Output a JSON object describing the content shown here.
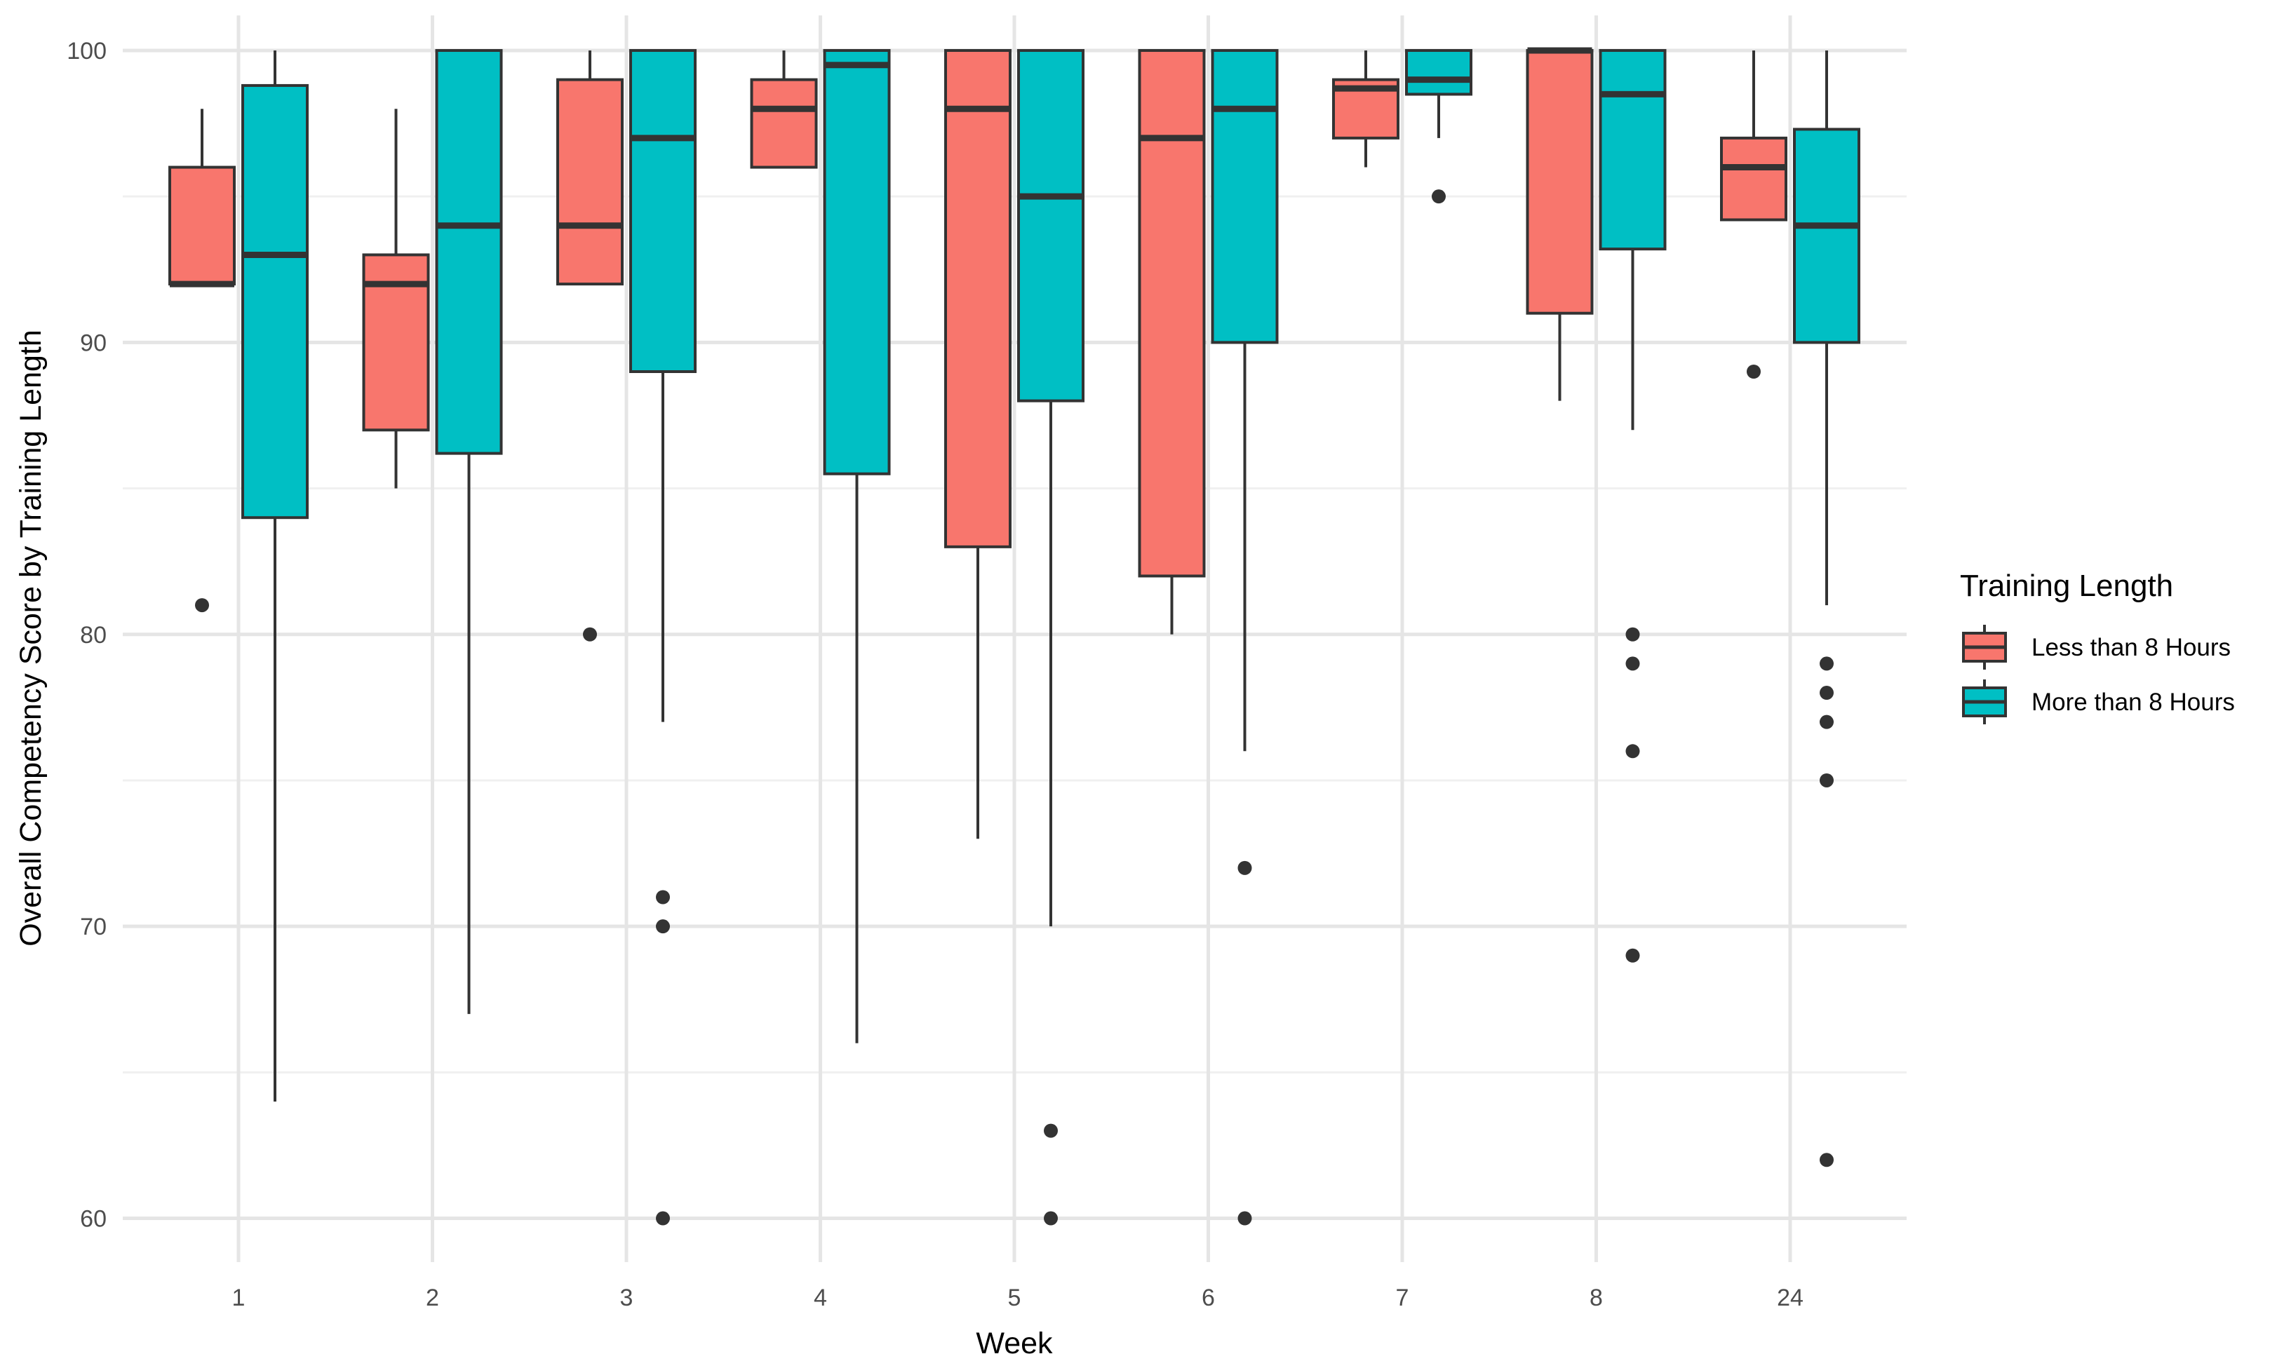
{
  "chart_data": {
    "type": "boxplot",
    "title": "",
    "xlabel": "Week",
    "ylabel": "Overall Competency Score by Training Length",
    "categories": [
      "1",
      "2",
      "3",
      "4",
      "5",
      "6",
      "7",
      "8",
      "24"
    ],
    "ylim": [
      58.5,
      101.2
    ],
    "yticks": [
      60,
      70,
      80,
      90,
      100
    ],
    "grid": true,
    "legend": {
      "title": "Training Length",
      "position": "right"
    },
    "series": [
      {
        "name": "Less than 8 Hours",
        "color": "#F8766D",
        "boxes": [
          {
            "week": "1",
            "low": 92,
            "q1": 92,
            "median": 92,
            "q3": 96,
            "high": 98,
            "outliers": [
              81
            ]
          },
          {
            "week": "2",
            "low": 85,
            "q1": 87,
            "median": 92,
            "q3": 93,
            "high": 98,
            "outliers": []
          },
          {
            "week": "3",
            "low": 92,
            "q1": 92,
            "median": 94,
            "q3": 99,
            "high": 100,
            "outliers": [
              80
            ]
          },
          {
            "week": "4",
            "low": 96,
            "q1": 96,
            "median": 98,
            "q3": 99,
            "high": 100,
            "outliers": []
          },
          {
            "week": "5",
            "low": 73,
            "q1": 83,
            "median": 98,
            "q3": 100,
            "high": 100,
            "outliers": []
          },
          {
            "week": "6",
            "low": 80,
            "q1": 82,
            "median": 97,
            "q3": 100,
            "high": 100,
            "outliers": []
          },
          {
            "week": "7",
            "low": 96,
            "q1": 97,
            "median": 98.7,
            "q3": 99,
            "high": 100,
            "outliers": []
          },
          {
            "week": "8",
            "low": 88,
            "q1": 91,
            "median": 100,
            "q3": 100,
            "high": 100,
            "outliers": []
          },
          {
            "week": "24",
            "low": 94.2,
            "q1": 94.2,
            "median": 96,
            "q3": 97,
            "high": 100,
            "outliers": [
              89
            ]
          }
        ]
      },
      {
        "name": "More than 8 Hours",
        "color": "#00BFC4",
        "boxes": [
          {
            "week": "1",
            "low": 64,
            "q1": 84,
            "median": 93,
            "q3": 98.8,
            "high": 100,
            "outliers": []
          },
          {
            "week": "2",
            "low": 67,
            "q1": 86.2,
            "median": 94,
            "q3": 100,
            "high": 100,
            "outliers": []
          },
          {
            "week": "3",
            "low": 77,
            "q1": 89,
            "median": 97,
            "q3": 100,
            "high": 100,
            "outliers": [
              71,
              70,
              60
            ]
          },
          {
            "week": "4",
            "low": 66,
            "q1": 85.5,
            "median": 99.5,
            "q3": 100,
            "high": 100,
            "outliers": []
          },
          {
            "week": "5",
            "low": 70,
            "q1": 88,
            "median": 95,
            "q3": 100,
            "high": 100,
            "outliers": [
              63,
              60
            ]
          },
          {
            "week": "6",
            "low": 76,
            "q1": 90,
            "median": 98,
            "q3": 100,
            "high": 100,
            "outliers": [
              72,
              60
            ]
          },
          {
            "week": "7",
            "low": 97,
            "q1": 98.5,
            "median": 99,
            "q3": 100,
            "high": 100,
            "outliers": [
              95
            ]
          },
          {
            "week": "8",
            "low": 87,
            "q1": 93.2,
            "median": 98.5,
            "q3": 100,
            "high": 100,
            "outliers": [
              80,
              79,
              76,
              69
            ]
          },
          {
            "week": "24",
            "low": 81,
            "q1": 90,
            "median": 94,
            "q3": 97.3,
            "high": 100,
            "outliers": [
              79,
              78,
              77,
              75,
              62
            ]
          }
        ]
      }
    ]
  }
}
